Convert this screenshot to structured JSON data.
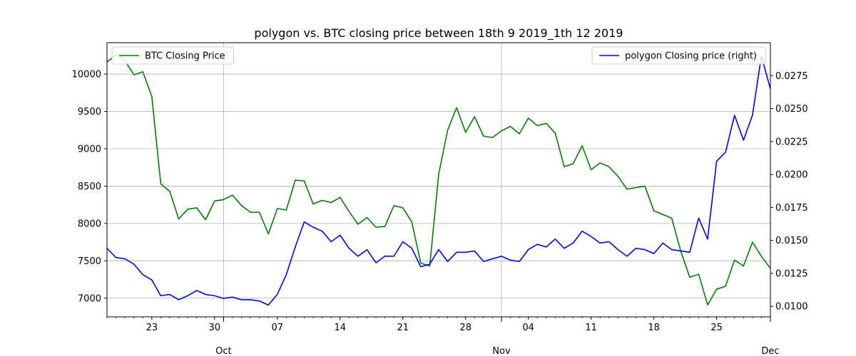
{
  "chart_data": {
    "type": "line",
    "title": "polygon vs. BTC closing price between 18th 9 2019_1th 12 2019",
    "xlabel": "",
    "ylabel": "",
    "ylabel_right": "",
    "grid": true,
    "x_start": "2019-09-18",
    "x_end": "2019-12-01",
    "xlim": [
      "2019-09-18",
      "2019-12-01"
    ],
    "ylim_left": [
      6750,
      10420
    ],
    "ylim_right": [
      0.0092,
      0.03
    ],
    "x_minor_ticks": [
      {
        "date": "2019-09-23",
        "label": "23"
      },
      {
        "date": "2019-09-30",
        "label": "30"
      },
      {
        "date": "2019-10-07",
        "label": "07"
      },
      {
        "date": "2019-10-14",
        "label": "14"
      },
      {
        "date": "2019-10-21",
        "label": "21"
      },
      {
        "date": "2019-10-28",
        "label": "28"
      },
      {
        "date": "2019-11-04",
        "label": "04"
      },
      {
        "date": "2019-11-11",
        "label": "11"
      },
      {
        "date": "2019-11-18",
        "label": "18"
      },
      {
        "date": "2019-11-25",
        "label": "25"
      }
    ],
    "x_major_ticks": [
      {
        "date": "2019-10-01",
        "label": "Oct"
      },
      {
        "date": "2019-11-01",
        "label": "Nov"
      },
      {
        "date": "2019-12-01",
        "label": "Dec"
      }
    ],
    "y_left_ticks": [
      7000,
      7500,
      8000,
      8500,
      9000,
      9500,
      10000
    ],
    "y_right_ticks": [
      0.01,
      0.0125,
      0.015,
      0.0175,
      0.02,
      0.0225,
      0.025,
      0.0275
    ],
    "y_right_tick_labels": [
      "0.0100",
      "0.0125",
      "0.0150",
      "0.0175",
      "0.0200",
      "0.0225",
      "0.0250",
      "0.0275"
    ],
    "series": [
      {
        "name": "BTC Closing Price",
        "axis": "left",
        "color": "#008000",
        "legend_position": "top-left",
        "values": [
          10160,
          10260,
          10180,
          9990,
          10030,
          9700,
          8530,
          8430,
          8060,
          8190,
          8210,
          8050,
          8300,
          8320,
          8380,
          8240,
          8150,
          8150,
          7860,
          8200,
          8180,
          8580,
          8570,
          8260,
          8310,
          8280,
          8350,
          8160,
          7990,
          8080,
          7950,
          7960,
          8240,
          8210,
          8020,
          7470,
          7430,
          8660,
          9250,
          9550,
          9220,
          9430,
          9170,
          9150,
          9240,
          9300,
          9200,
          9410,
          9310,
          9340,
          9210,
          8760,
          8800,
          9040,
          8720,
          8810,
          8760,
          8630,
          8460,
          8480,
          8500,
          8170,
          8120,
          8070,
          7630,
          7280,
          7320,
          6910,
          7120,
          7160,
          7510,
          7430,
          7750,
          7560,
          7400
        ]
      },
      {
        "name": "polygon Closing price (right)",
        "axis": "right",
        "color": "#0000ff",
        "legend_position": "top-right",
        "values": [
          0.0144,
          0.0137,
          0.0136,
          0.0132,
          0.0124,
          0.012,
          0.0108,
          0.0109,
          0.0105,
          0.0108,
          0.0112,
          0.0109,
          0.0108,
          0.0106,
          0.0107,
          0.0105,
          0.0105,
          0.0104,
          0.0101,
          0.0109,
          0.0124,
          0.0145,
          0.0164,
          0.016,
          0.0157,
          0.0149,
          0.0154,
          0.0144,
          0.0138,
          0.0143,
          0.0133,
          0.0138,
          0.0138,
          0.0149,
          0.0144,
          0.013,
          0.0132,
          0.0143,
          0.0134,
          0.0141,
          0.0141,
          0.0142,
          0.0134,
          0.0136,
          0.0138,
          0.0135,
          0.0134,
          0.0143,
          0.0147,
          0.0145,
          0.0151,
          0.0144,
          0.0148,
          0.0157,
          0.0153,
          0.0148,
          0.0149,
          0.0143,
          0.0138,
          0.0144,
          0.0143,
          0.014,
          0.0148,
          0.0143,
          0.0142,
          0.0141,
          0.0167,
          0.0151,
          0.021,
          0.0217,
          0.0245,
          0.0226,
          0.0245,
          0.029,
          0.0265
        ]
      }
    ]
  }
}
